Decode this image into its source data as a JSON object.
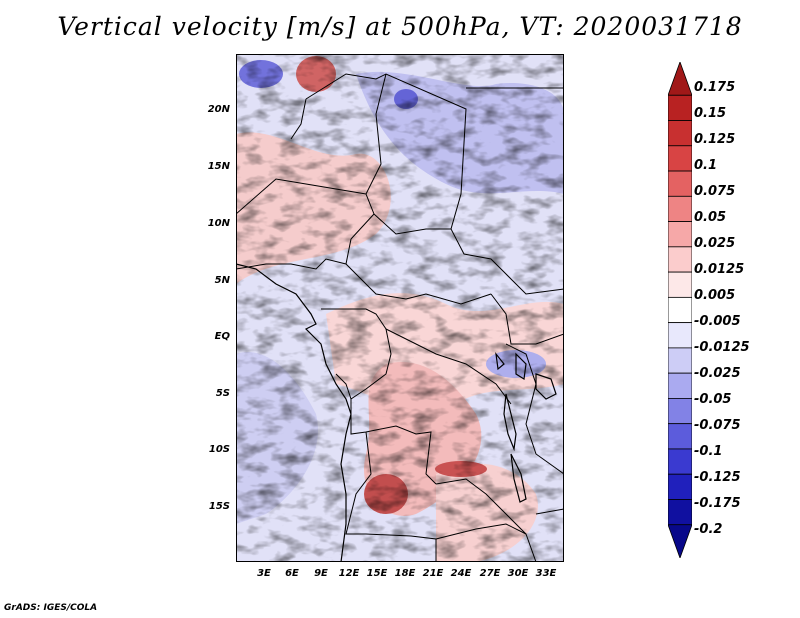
{
  "title": "Vertical velocity [m/s] at 500hPa, VT: 2020031718",
  "credit": "GrADS: IGES/COLA",
  "map": {
    "lat_labels": [
      "20N",
      "15N",
      "10N",
      "5N",
      "EQ",
      "5S",
      "10S",
      "15S"
    ],
    "lon_labels": [
      "3E",
      "6E",
      "9E",
      "12E",
      "15E",
      "18E",
      "21E",
      "24E",
      "27E",
      "30E",
      "33E"
    ]
  },
  "colorbar": {
    "labels": [
      "0.175",
      "0.15",
      "0.125",
      "0.1",
      "0.075",
      "0.05",
      "0.025",
      "0.0125",
      "0.005",
      "-0.005",
      "-0.0125",
      "-0.025",
      "-0.05",
      "-0.075",
      "-0.1",
      "-0.125",
      "-0.175",
      "-0.2"
    ],
    "colors": [
      "#a01818",
      "#b82222",
      "#c83030",
      "#d84444",
      "#e46262",
      "#ee8484",
      "#f6a8a8",
      "#fbcccc",
      "#fde8e8",
      "#ffffff",
      "#e8e8fc",
      "#cdcdf6",
      "#aaaaf0",
      "#8282e6",
      "#5c5cdc",
      "#3a3ad0",
      "#2020bc",
      "#1010a0",
      "#08088a"
    ]
  }
}
